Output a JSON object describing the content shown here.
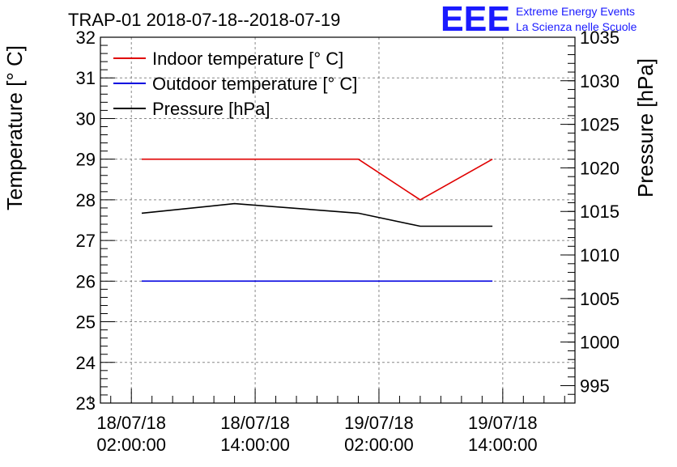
{
  "chart_data": {
    "type": "line",
    "title": "TRAP-01 2018-07-18--2018-07-19",
    "ylabel": "Temperature [° C]",
    "y2label": "Pressure [hPa]",
    "logo": {
      "text": "EEE",
      "line1": "Extreme Energy Events",
      "line2": "La Scienza nelle Scuole"
    },
    "xlim": [
      "2018-07-17T23:00:00",
      "2018-07-19T21:00:00"
    ],
    "ylim": [
      23,
      32
    ],
    "y2lim": [
      993,
      1035
    ],
    "grid": true,
    "legend": "top-left",
    "x_ticks": [
      {
        "t": "2018-07-18T02:00:00",
        "line1": "18/07/18",
        "line2": "02:00:00"
      },
      {
        "t": "2018-07-18T14:00:00",
        "line1": "18/07/18",
        "line2": "14:00:00"
      },
      {
        "t": "2018-07-19T02:00:00",
        "line1": "19/07/18",
        "line2": "02:00:00"
      },
      {
        "t": "2018-07-19T14:00:00",
        "line1": "19/07/18",
        "line2": "14:00:00"
      }
    ],
    "y_ticks": [
      "23",
      "24",
      "25",
      "26",
      "27",
      "28",
      "29",
      "30",
      "31",
      "32"
    ],
    "y2_ticks": [
      "995",
      "1000",
      "1005",
      "1010",
      "1015",
      "1020",
      "1025",
      "1030",
      "1035"
    ],
    "x": [
      "2018-07-18T03:00:00",
      "2018-07-18T12:00:00",
      "2018-07-19T00:00:00",
      "2018-07-19T06:00:00",
      "2018-07-19T13:00:00"
    ],
    "series": [
      {
        "name": "Indoor temperature [° C]",
        "axis": "left",
        "color": "#e00000",
        "values": [
          29,
          29,
          29,
          28,
          29
        ]
      },
      {
        "name": "Outdoor temperature [° C]",
        "axis": "left",
        "color": "#0000e0",
        "values": [
          26,
          26,
          26,
          26,
          26
        ]
      },
      {
        "name": "Pressure [hPa]",
        "axis": "right",
        "color": "#000000",
        "values": [
          1014.8,
          1015.9,
          1014.8,
          1013.3,
          1013.3
        ]
      }
    ]
  }
}
